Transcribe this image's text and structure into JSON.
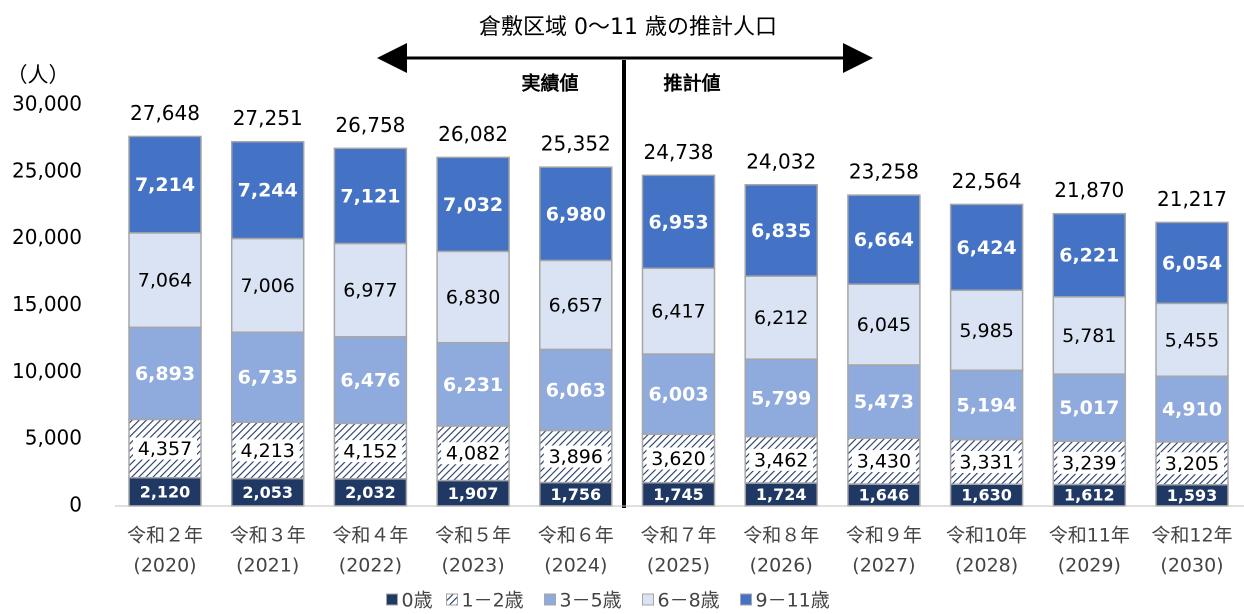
{
  "chart_data": {
    "type": "stacked_bar",
    "title": "倉敷区域 0～11 歳の推計人口",
    "y_label": "（人）",
    "annotations": [
      "実績値",
      "推計値"
    ],
    "categories": [
      [
        "令和２年",
        "(2020)"
      ],
      [
        "令和３年",
        "(2021)"
      ],
      [
        "令和４年",
        "(2022)"
      ],
      [
        "令和５年",
        "(2023)"
      ],
      [
        "令和６年",
        "(2024)"
      ],
      [
        "令和７年",
        "(2025)"
      ],
      [
        "令和８年",
        "(2026)"
      ],
      [
        "令和９年",
        "(2027)"
      ],
      [
        "令和10年",
        "(2028)"
      ],
      [
        "令和11年",
        "(2029)"
      ],
      [
        "令和12年",
        "(2030)"
      ]
    ],
    "series": [
      {
        "name": "0歳",
        "color": "#203864",
        "values": [
          2120,
          2053,
          2032,
          1907,
          1756,
          1745,
          1724,
          1646,
          1630,
          1612,
          1593
        ],
        "value_labels": [
          "2,120",
          "2,053",
          "2,032",
          "1,907",
          "1,756",
          "1,745",
          "1,724",
          "1,646",
          "1,630",
          "1,612",
          "1,593"
        ]
      },
      {
        "name": "1－2歳",
        "color": "#203864",
        "hatch": true,
        "values": [
          4357,
          4213,
          4152,
          4082,
          3896,
          3620,
          3462,
          3430,
          3331,
          3239,
          3205
        ],
        "value_labels": [
          "4,357",
          "4,213",
          "4,152",
          "4,082",
          "3,896",
          "3,620",
          "3,462",
          "3,430",
          "3,331",
          "3,239",
          "3,205"
        ]
      },
      {
        "name": "3－5歳",
        "color": "#8faadc",
        "values": [
          6893,
          6735,
          6476,
          6231,
          6063,
          6003,
          5799,
          5473,
          5194,
          5017,
          4910
        ],
        "value_labels": [
          "6,893",
          "6,735",
          "6,476",
          "6,231",
          "6,063",
          "6,003",
          "5,799",
          "5,473",
          "5,194",
          "5,017",
          "4,910"
        ]
      },
      {
        "name": "6－8歳",
        "color": "#dae3f3",
        "values": [
          7064,
          7006,
          6977,
          6830,
          6657,
          6417,
          6212,
          6045,
          5985,
          5781,
          5455
        ],
        "value_labels": [
          "7,064",
          "7,006",
          "6,977",
          "6,830",
          "6,657",
          "6,417",
          "6,212",
          "6,045",
          "5,985",
          "5,781",
          "5,455"
        ]
      },
      {
        "name": "9－11歳",
        "color": "#4472c4",
        "values": [
          7214,
          7244,
          7121,
          7032,
          6980,
          6953,
          6835,
          6664,
          6424,
          6221,
          6054
        ],
        "value_labels": [
          "7,214",
          "7,244",
          "7,121",
          "7,032",
          "6,980",
          "6,953",
          "6,835",
          "6,664",
          "6,424",
          "6,221",
          "6,054"
        ]
      }
    ],
    "totals": [
      27648,
      27251,
      26758,
      26082,
      25352,
      24738,
      24032,
      23258,
      22564,
      21870,
      21217
    ],
    "totals_labels": [
      "27,648",
      "27,251",
      "26,758",
      "26,082",
      "25,352",
      "24,738",
      "24,032",
      "23,258",
      "22,564",
      "21,870",
      "21,217"
    ],
    "ylim": [
      0,
      30000
    ],
    "yticks": [
      0,
      {
        "value": 5000,
        "label": "5,000"
      },
      {
        "value": 10000,
        "label": "10,000"
      },
      {
        "value": 15000,
        "label": "15,000"
      },
      {
        "value": 20000,
        "label": "20,000"
      },
      {
        "value": 25000,
        "label": "25,000"
      },
      {
        "value": 30000,
        "label": "30,000"
      }
    ],
    "legend": "bottom"
  }
}
